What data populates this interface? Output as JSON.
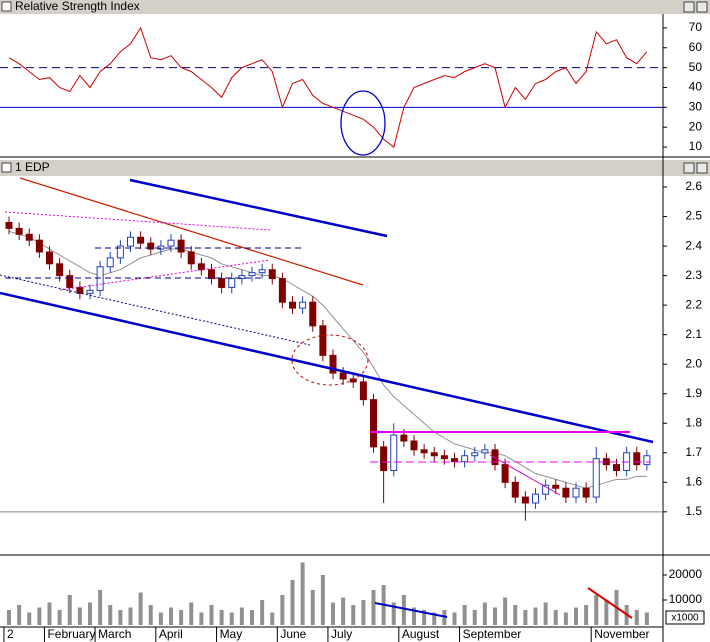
{
  "chart_data": [
    {
      "type": "line",
      "title": "Relative Strength Index",
      "color": "#cc0000",
      "values": [
        55,
        52,
        48,
        44,
        45,
        40,
        38,
        46,
        40,
        48,
        52,
        58,
        62,
        70,
        55,
        54,
        56,
        50,
        48,
        44,
        40,
        35,
        45,
        50,
        52,
        54,
        48,
        30,
        42,
        44,
        36,
        32,
        30,
        28,
        26,
        24,
        20,
        14,
        10,
        30,
        40,
        42,
        44,
        46,
        45,
        48,
        50,
        52,
        50,
        30,
        40,
        34,
        42,
        44,
        48,
        50,
        42,
        48,
        68,
        62,
        64,
        55,
        52,
        58
      ],
      "ylim": [
        5,
        77
      ],
      "yticks": [
        10,
        20,
        30,
        40,
        50,
        60,
        70
      ],
      "levels": [
        {
          "value": 50,
          "color": "#000080",
          "style": "dashed"
        },
        {
          "value": 30,
          "color": "#0000cc",
          "style": "solid"
        }
      ]
    },
    {
      "type": "candlestick",
      "title": "1 EDP",
      "up_color": "#2040c0",
      "down_color": "#800000",
      "open": [
        2.48,
        2.46,
        2.44,
        2.42,
        2.38,
        2.34,
        2.3,
        2.26,
        2.24,
        2.25,
        2.33,
        2.36,
        2.4,
        2.43,
        2.41,
        2.39,
        2.4,
        2.42,
        2.38,
        2.34,
        2.32,
        2.29,
        2.26,
        2.29,
        2.3,
        2.31,
        2.32,
        2.29,
        2.21,
        2.19,
        2.21,
        2.13,
        2.03,
        1.97,
        1.95,
        1.94,
        1.88,
        1.72,
        1.64,
        1.76,
        1.74,
        1.71,
        1.7,
        1.69,
        1.68,
        1.67,
        1.69,
        1.7,
        1.71,
        1.66,
        1.6,
        1.55,
        1.53,
        1.56,
        1.59,
        1.58,
        1.55,
        1.58,
        1.55,
        1.68,
        1.66,
        1.64,
        1.7,
        1.66
      ],
      "high": [
        2.5,
        2.48,
        2.46,
        2.44,
        2.4,
        2.36,
        2.32,
        2.28,
        2.27,
        2.35,
        2.38,
        2.42,
        2.45,
        2.45,
        2.43,
        2.42,
        2.44,
        2.44,
        2.4,
        2.36,
        2.34,
        2.31,
        2.31,
        2.32,
        2.33,
        2.34,
        2.34,
        2.31,
        2.23,
        2.23,
        2.23,
        2.15,
        2.05,
        1.99,
        1.97,
        1.96,
        1.9,
        1.74,
        1.8,
        1.78,
        1.76,
        1.73,
        1.72,
        1.71,
        1.7,
        1.71,
        1.72,
        1.73,
        1.73,
        1.68,
        1.62,
        1.57,
        1.58,
        1.61,
        1.61,
        1.6,
        1.6,
        1.6,
        1.72,
        1.7,
        1.68,
        1.72,
        1.72,
        1.71
      ],
      "low": [
        2.44,
        2.42,
        2.4,
        2.36,
        2.32,
        2.28,
        2.24,
        2.22,
        2.22,
        2.23,
        2.31,
        2.34,
        2.38,
        2.39,
        2.37,
        2.37,
        2.38,
        2.36,
        2.32,
        2.3,
        2.27,
        2.24,
        2.24,
        2.27,
        2.28,
        2.29,
        2.27,
        2.19,
        2.17,
        2.17,
        2.11,
        2.01,
        1.95,
        1.93,
        1.92,
        1.86,
        1.7,
        1.53,
        1.62,
        1.72,
        1.69,
        1.68,
        1.67,
        1.66,
        1.65,
        1.65,
        1.67,
        1.68,
        1.64,
        1.58,
        1.53,
        1.47,
        1.51,
        1.54,
        1.56,
        1.53,
        1.53,
        1.53,
        1.53,
        1.64,
        1.62,
        1.62,
        1.64,
        1.64
      ],
      "close": [
        2.46,
        2.44,
        2.42,
        2.38,
        2.34,
        2.3,
        2.26,
        2.24,
        2.25,
        2.33,
        2.36,
        2.4,
        2.43,
        2.41,
        2.39,
        2.4,
        2.42,
        2.38,
        2.34,
        2.32,
        2.29,
        2.26,
        2.29,
        2.3,
        2.31,
        2.32,
        2.29,
        2.21,
        2.19,
        2.21,
        2.13,
        2.03,
        1.97,
        1.95,
        1.94,
        1.88,
        1.72,
        1.64,
        1.76,
        1.74,
        1.71,
        1.7,
        1.69,
        1.68,
        1.67,
        1.69,
        1.7,
        1.71,
        1.66,
        1.6,
        1.55,
        1.53,
        1.56,
        1.59,
        1.58,
        1.55,
        1.58,
        1.55,
        1.68,
        1.66,
        1.64,
        1.7,
        1.66,
        1.69
      ],
      "overlay": {
        "color": "#909090",
        "values": [
          2.45,
          2.44,
          2.43,
          2.41,
          2.39,
          2.37,
          2.35,
          2.33,
          2.31,
          2.3,
          2.31,
          2.32,
          2.34,
          2.36,
          2.37,
          2.38,
          2.39,
          2.39,
          2.38,
          2.37,
          2.36,
          2.34,
          2.33,
          2.32,
          2.31,
          2.3,
          2.3,
          2.29,
          2.27,
          2.25,
          2.23,
          2.2,
          2.16,
          2.12,
          2.08,
          2.04,
          1.99,
          1.93,
          1.89,
          1.86,
          1.83,
          1.8,
          1.77,
          1.75,
          1.73,
          1.72,
          1.71,
          1.7,
          1.7,
          1.69,
          1.67,
          1.65,
          1.63,
          1.62,
          1.61,
          1.6,
          1.59,
          1.58,
          1.59,
          1.6,
          1.61,
          1.61,
          1.62,
          1.62
        ]
      },
      "ylim": [
        1.364,
        2.634
      ],
      "yticks": [
        1.5,
        1.6,
        1.7,
        1.8,
        1.9,
        {
          "value": 2,
          "label": "2.0"
        },
        2.1,
        2.2,
        2.3,
        2.4,
        2.5,
        2.6
      ],
      "levels": [
        {
          "value": 1.5,
          "color": "#808080",
          "style": "solid"
        }
      ]
    },
    {
      "type": "bar",
      "color": "#909090",
      "unit_label": "x1000",
      "values": [
        6000,
        8000,
        5000,
        7000,
        9000,
        6000,
        12000,
        7000,
        9000,
        14000,
        8000,
        6000,
        7000,
        13000,
        8000,
        5000,
        7000,
        6000,
        9000,
        5000,
        8000,
        6000,
        5000,
        7000,
        6000,
        10000,
        5000,
        12000,
        18000,
        25000,
        14000,
        20000,
        9000,
        11000,
        8000,
        10000,
        14000,
        16000,
        9000,
        12000,
        7000,
        6000,
        5000,
        6000,
        5000,
        8000,
        6000,
        9000,
        7000,
        11000,
        8000,
        6000,
        7000,
        9000,
        6000,
        5000,
        7000,
        8000,
        12000,
        10000,
        14000,
        8000,
        6000,
        5000
      ],
      "categories": [
        "2",
        null,
        null,
        null,
        "February",
        null,
        null,
        null,
        null,
        "March",
        null,
        null,
        null,
        null,
        null,
        "April",
        null,
        null,
        null,
        null,
        null,
        "May",
        null,
        null,
        null,
        null,
        null,
        "June",
        null,
        null,
        null,
        null,
        "July",
        null,
        null,
        null,
        null,
        null,
        null,
        "August",
        null,
        null,
        null,
        null,
        null,
        "September",
        null,
        null,
        null,
        null,
        null,
        null,
        null,
        null,
        null,
        null,
        null,
        null,
        "November",
        null,
        null,
        null,
        null,
        null
      ],
      "ylim": [
        0,
        27200
      ],
      "yticks": [
        10000,
        20000
      ]
    }
  ]
}
